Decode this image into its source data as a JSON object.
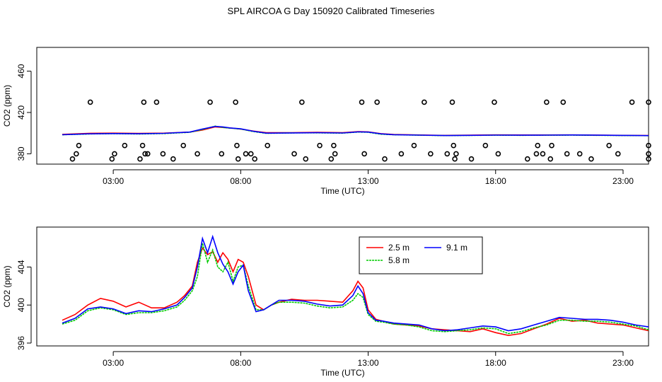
{
  "title": "SPL AIRCOA G  Day 150920  Calibrated Timeseries",
  "chart_data": [
    {
      "type": "scatter",
      "title": "",
      "xlabel": "Time (UTC)",
      "ylabel": "CO2 (ppm)",
      "xlim": [
        0,
        24
      ],
      "ylim": [
        370,
        483
      ],
      "xticks": [
        3,
        8,
        13,
        18,
        23
      ],
      "xtick_labels": [
        "03:00",
        "08:00",
        "13:00",
        "18:00",
        "23:00"
      ],
      "yticks": [
        380,
        420,
        460
      ],
      "ytick_labels": [
        "380",
        "420",
        "460"
      ],
      "points": {
        "x": [
          1.55,
          3.05,
          4.25,
          4.35,
          4.95,
          6.3,
          7.25,
          8.2,
          8.4,
          10.1,
          11.7,
          12.85,
          14.3,
          15.45,
          16.1,
          16.45,
          18.1,
          19.6,
          19.85,
          20.8,
          21.3,
          22.8,
          24.0,
          2.1,
          4.2,
          4.7,
          6.8,
          7.8,
          10.4,
          12.75,
          13.35,
          15.2,
          16.3,
          17.95,
          20.0,
          20.65,
          23.35,
          24.0,
          1.65,
          3.45,
          4.15,
          5.75,
          7.85,
          9.05,
          11.1,
          11.65,
          14.8,
          16.35,
          17.6,
          19.65,
          20.2,
          22.45,
          24.0,
          1.4,
          2.95,
          4.05,
          5.35,
          7.9,
          8.55,
          10.55,
          11.55,
          13.65,
          16.4,
          17.05,
          19.25,
          20.15,
          21.75,
          24.0
        ],
        "y": [
          380,
          380,
          380,
          380,
          380,
          380,
          380,
          380,
          380,
          380,
          380,
          380,
          380,
          380,
          380,
          380,
          380,
          380,
          380,
          380,
          380,
          380,
          380,
          430,
          430,
          430,
          430,
          430,
          430,
          430,
          430,
          430,
          430,
          430,
          430,
          430,
          430,
          430,
          388,
          388,
          388,
          388,
          388,
          388,
          388,
          388,
          388,
          388,
          388,
          388,
          388,
          388,
          388,
          375,
          375,
          375,
          375,
          375,
          375,
          375,
          375,
          375,
          375,
          375,
          375,
          375,
          375,
          375
        ]
      },
      "series": [
        {
          "name": "2.5 m",
          "color": "#ff0000",
          "x": [
            1.0,
            2.0,
            3.0,
            4.0,
            5.0,
            6.0,
            6.5,
            7.0,
            7.3,
            7.6,
            8.0,
            8.5,
            9.0,
            10.0,
            11.0,
            12.0,
            12.6,
            13.0,
            13.5,
            14.0,
            15.0,
            16.0,
            17.0,
            18.0,
            19.0,
            20.0,
            21.0,
            22.0,
            23.0,
            24.0
          ],
          "y": [
            398.8,
            399.8,
            400.0,
            399.8,
            400.0,
            401.0,
            403.0,
            406.0,
            405.5,
            405.0,
            404.0,
            402.0,
            400.5,
            400.5,
            400.8,
            400.5,
            401.5,
            401.2,
            399.5,
            398.7,
            398.2,
            397.8,
            398.0,
            398.3,
            398.2,
            398.2,
            398.3,
            398.0,
            397.9,
            397.7
          ]
        },
        {
          "name": "5.8 m",
          "color": "#00cc00",
          "x": [
            1.0,
            2.0,
            3.0,
            4.0,
            5.0,
            6.0,
            6.5,
            7.0,
            7.3,
            7.6,
            8.0,
            8.5,
            9.0,
            10.0,
            11.0,
            12.0,
            12.6,
            13.0,
            13.5,
            14.0,
            15.0,
            16.0,
            17.0,
            18.0,
            19.0,
            20.0,
            21.0,
            22.0,
            23.0,
            24.0
          ],
          "y": [
            398.4,
            399.2,
            399.5,
            399.2,
            399.6,
            400.8,
            403.5,
            406.8,
            405.5,
            404.8,
            404.0,
            401.5,
            399.8,
            400.2,
            400.3,
            400.0,
            401.0,
            400.8,
            399.0,
            398.4,
            398.0,
            397.6,
            397.8,
            398.0,
            397.9,
            398.0,
            398.1,
            397.9,
            397.7,
            397.5
          ]
        },
        {
          "name": "9.1 m",
          "color": "#0000ff",
          "x": [
            1.0,
            2.0,
            3.0,
            4.0,
            5.0,
            6.0,
            6.5,
            7.0,
            7.3,
            7.6,
            8.0,
            8.5,
            9.0,
            10.0,
            11.0,
            12.0,
            12.6,
            13.0,
            13.5,
            14.0,
            15.0,
            16.0,
            17.0,
            18.0,
            19.0,
            20.0,
            21.0,
            22.0,
            23.0,
            24.0
          ],
          "y": [
            398.5,
            399.3,
            399.6,
            399.4,
            399.8,
            401.0,
            404.0,
            406.5,
            406.0,
            405.0,
            404.2,
            401.8,
            400.0,
            400.2,
            400.4,
            400.1,
            401.2,
            401.0,
            399.3,
            398.5,
            398.1,
            397.7,
            397.9,
            398.1,
            398.0,
            398.1,
            398.2,
            398.0,
            397.8,
            397.6
          ]
        }
      ]
    },
    {
      "type": "line",
      "title": "",
      "xlabel": "Time (UTC)",
      "ylabel": "CO2 (ppm)",
      "xlim": [
        0,
        24
      ],
      "ylim": [
        395.7,
        408.2
      ],
      "xticks": [
        3,
        8,
        13,
        18,
        23
      ],
      "xtick_labels": [
        "03:00",
        "08:00",
        "13:00",
        "18:00",
        "23:00"
      ],
      "yticks": [
        396,
        400,
        404
      ],
      "ytick_labels": [
        "396",
        "400",
        "404"
      ],
      "legend": "top-center",
      "series": [
        {
          "name": "2.5 m",
          "color": "#ff0000",
          "x": [
            1.0,
            1.5,
            2.0,
            2.5,
            3.0,
            3.5,
            4.0,
            4.5,
            5.0,
            5.5,
            5.8,
            6.1,
            6.3,
            6.5,
            6.7,
            6.9,
            7.1,
            7.3,
            7.5,
            7.7,
            7.9,
            8.1,
            8.3,
            8.6,
            8.9,
            9.2,
            9.5,
            10.0,
            10.5,
            11.0,
            11.5,
            12.0,
            12.4,
            12.6,
            12.8,
            13.0,
            13.3,
            13.6,
            14.0,
            14.5,
            15.0,
            15.5,
            16.0,
            16.5,
            17.0,
            17.5,
            18.0,
            18.5,
            19.0,
            19.5,
            20.0,
            20.5,
            21.0,
            21.5,
            22.0,
            22.5,
            23.0,
            23.5,
            24.0
          ],
          "y": [
            398.4,
            399.0,
            400.0,
            400.7,
            400.4,
            399.8,
            400.3,
            399.7,
            399.7,
            400.3,
            401.0,
            402.0,
            404.5,
            406.0,
            405.3,
            405.6,
            404.5,
            405.5,
            404.8,
            403.5,
            404.8,
            404.5,
            403.0,
            400.0,
            399.5,
            400.0,
            400.3,
            400.6,
            400.5,
            400.5,
            400.4,
            400.3,
            401.5,
            402.5,
            401.8,
            399.5,
            398.5,
            398.3,
            398.0,
            397.9,
            397.8,
            397.5,
            397.4,
            397.3,
            397.2,
            397.5,
            397.1,
            396.8,
            397.0,
            397.5,
            398.0,
            398.6,
            398.3,
            398.4,
            398.1,
            398.0,
            397.9,
            397.6,
            397.3
          ]
        },
        {
          "name": "5.8 m",
          "color": "#00cc00",
          "x": [
            1.0,
            1.5,
            2.0,
            2.5,
            3.0,
            3.5,
            4.0,
            4.5,
            5.0,
            5.5,
            5.8,
            6.1,
            6.3,
            6.5,
            6.7,
            6.9,
            7.1,
            7.3,
            7.5,
            7.7,
            7.9,
            8.1,
            8.3,
            8.6,
            8.9,
            9.2,
            9.5,
            10.0,
            10.5,
            11.0,
            11.5,
            12.0,
            12.4,
            12.6,
            12.8,
            13.0,
            13.3,
            13.6,
            14.0,
            14.5,
            15.0,
            15.5,
            16.0,
            16.5,
            17.0,
            17.5,
            18.0,
            18.5,
            19.0,
            19.5,
            20.0,
            20.5,
            21.0,
            21.5,
            22.0,
            22.5,
            23.0,
            23.5,
            24.0
          ],
          "y": [
            398.0,
            398.4,
            399.4,
            399.7,
            399.5,
            399.0,
            399.2,
            399.2,
            399.4,
            399.8,
            400.5,
            401.5,
            403.0,
            406.5,
            404.5,
            405.8,
            404.0,
            403.5,
            404.5,
            402.5,
            404.0,
            404.2,
            402.0,
            399.5,
            399.5,
            400.0,
            400.3,
            400.3,
            400.2,
            399.9,
            399.7,
            399.8,
            400.5,
            401.2,
            400.8,
            399.0,
            398.3,
            398.2,
            398.0,
            397.9,
            397.7,
            397.3,
            397.2,
            397.3,
            397.4,
            397.6,
            397.5,
            397.0,
            397.2,
            397.6,
            397.9,
            398.4,
            398.4,
            398.3,
            398.3,
            398.2,
            398.0,
            397.8,
            397.4
          ]
        },
        {
          "name": "9.1 m",
          "color": "#0000ff",
          "x": [
            1.0,
            1.5,
            2.0,
            2.5,
            3.0,
            3.5,
            4.0,
            4.5,
            5.0,
            5.5,
            5.8,
            6.1,
            6.3,
            6.5,
            6.7,
            6.9,
            7.1,
            7.3,
            7.5,
            7.7,
            7.9,
            8.1,
            8.3,
            8.6,
            8.9,
            9.2,
            9.5,
            10.0,
            10.5,
            11.0,
            11.5,
            12.0,
            12.4,
            12.6,
            12.8,
            13.0,
            13.3,
            13.6,
            14.0,
            14.5,
            15.0,
            15.5,
            16.0,
            16.5,
            17.0,
            17.5,
            18.0,
            18.5,
            19.0,
            19.5,
            20.0,
            20.5,
            21.0,
            21.5,
            22.0,
            22.5,
            23.0,
            23.5,
            24.0
          ],
          "y": [
            398.1,
            398.6,
            399.6,
            399.8,
            399.6,
            399.1,
            399.4,
            399.3,
            399.6,
            400.0,
            400.8,
            401.8,
            404.0,
            407.0,
            405.5,
            407.2,
            405.5,
            404.3,
            403.5,
            402.2,
            403.5,
            404.2,
            401.5,
            399.3,
            399.5,
            400.0,
            400.5,
            400.5,
            400.4,
            400.1,
            399.9,
            400.0,
            401.0,
            402.0,
            401.2,
            399.2,
            398.4,
            398.3,
            398.1,
            398.0,
            397.9,
            397.5,
            397.3,
            397.4,
            397.6,
            397.8,
            397.7,
            397.3,
            397.5,
            397.9,
            398.3,
            398.7,
            398.6,
            398.5,
            398.5,
            398.4,
            398.2,
            397.9,
            397.7
          ]
        }
      ]
    }
  ]
}
